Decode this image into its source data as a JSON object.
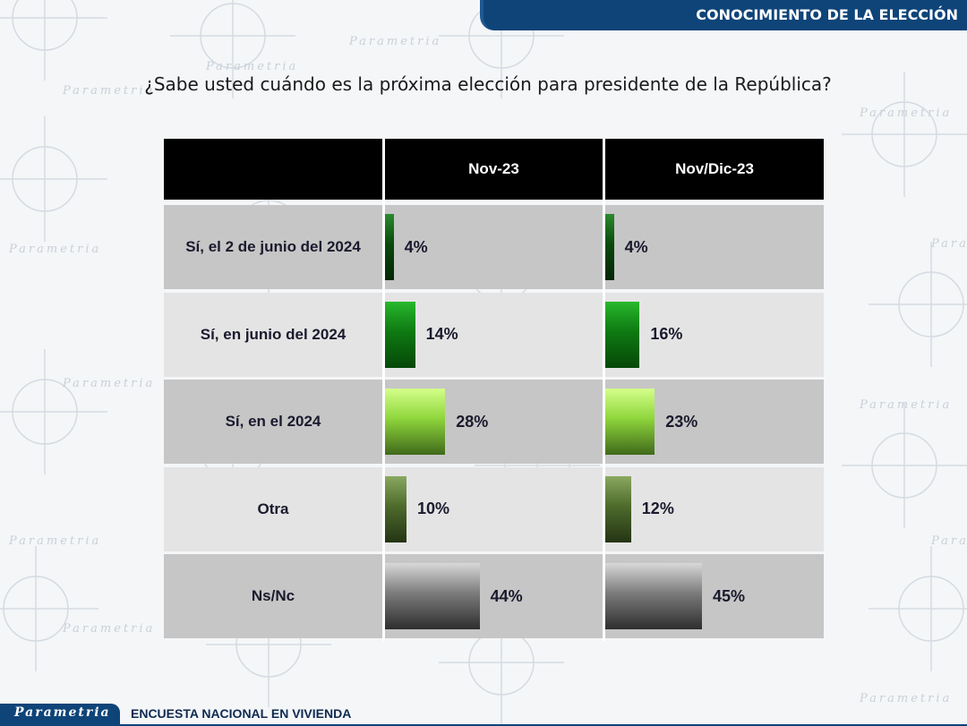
{
  "header": {
    "title": "CONOCIMIENTO DE LA ELECCIÓN"
  },
  "chart_data": {
    "type": "bar",
    "title": "¿Sabe usted cuándo es la próxima elección para presidente de la República?",
    "categories": [
      "Sí, el 2 de junio del 2024",
      "Sí, en junio del 2024",
      "Sí, en el 2024",
      "Otra",
      "Ns/Nc"
    ],
    "series": [
      {
        "name": "Nov-23",
        "values": [
          4,
          14,
          28,
          10,
          44
        ],
        "labels": [
          "4%",
          "14%",
          "28%",
          "10%",
          "44%"
        ]
      },
      {
        "name": "Nov/Dic-23",
        "values": [
          4,
          16,
          23,
          12,
          45
        ],
        "labels": [
          "4%",
          "16%",
          "23%",
          "12%",
          "45%"
        ]
      }
    ],
    "colors": [
      "#0f6a12",
      "#159a18",
      "#9fe84a",
      "#5a7a32",
      "#8a8a8a"
    ],
    "row_colors": [
      "#c6c6c6",
      "#e4e4e4"
    ],
    "header_color": "#000000"
  },
  "footer": {
    "logo": "Parametria",
    "text": "ENCUESTA NACIONAL EN VIVIENDA"
  },
  "watermark": {
    "text": "Parametria"
  }
}
